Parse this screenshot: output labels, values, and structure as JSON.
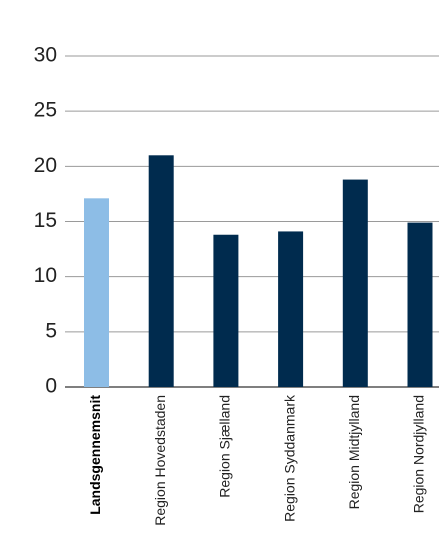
{
  "chart_data": {
    "type": "bar",
    "categories": [
      "Landsgennemsnit",
      "Region Hovedstaden",
      "Region Sjælland",
      "Region Syddanmark",
      "Region Midtjylland",
      "Region Nordjylland"
    ],
    "values": [
      17.1,
      21,
      13.8,
      14.1,
      18.8,
      14.9
    ],
    "colors": [
      "#8dbde6",
      "#002b4e",
      "#002b4e",
      "#002b4e",
      "#002b4e",
      "#002b4e"
    ],
    "ylim": [
      0,
      30
    ],
    "yticks": [
      0,
      5,
      10,
      15,
      20,
      25,
      30
    ],
    "grid": true
  }
}
